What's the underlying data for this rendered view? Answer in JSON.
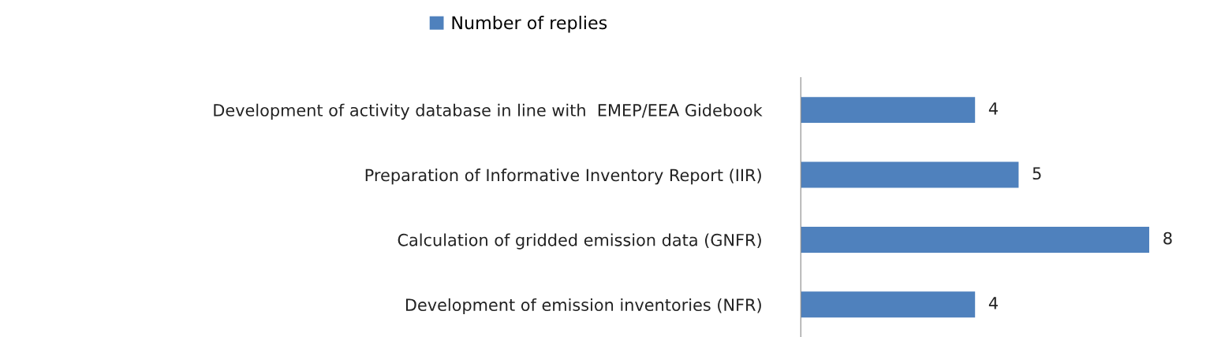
{
  "chart_data": {
    "type": "bar",
    "orientation": "horizontal",
    "categories": [
      "Development of activity database in line with  EMEP/EEA Gidebook",
      "Preparation of Informative Inventory Report (IIR)",
      "Calculation of gridded emission data (GNFR)",
      "Development of emission inventories (NFR)"
    ],
    "series": [
      {
        "name": "Number of replies",
        "color": "#4f81bd",
        "values": [
          4,
          5,
          8,
          4
        ]
      }
    ],
    "data_labels": true,
    "legend": "top",
    "grid": false,
    "tick_labels": "y"
  }
}
